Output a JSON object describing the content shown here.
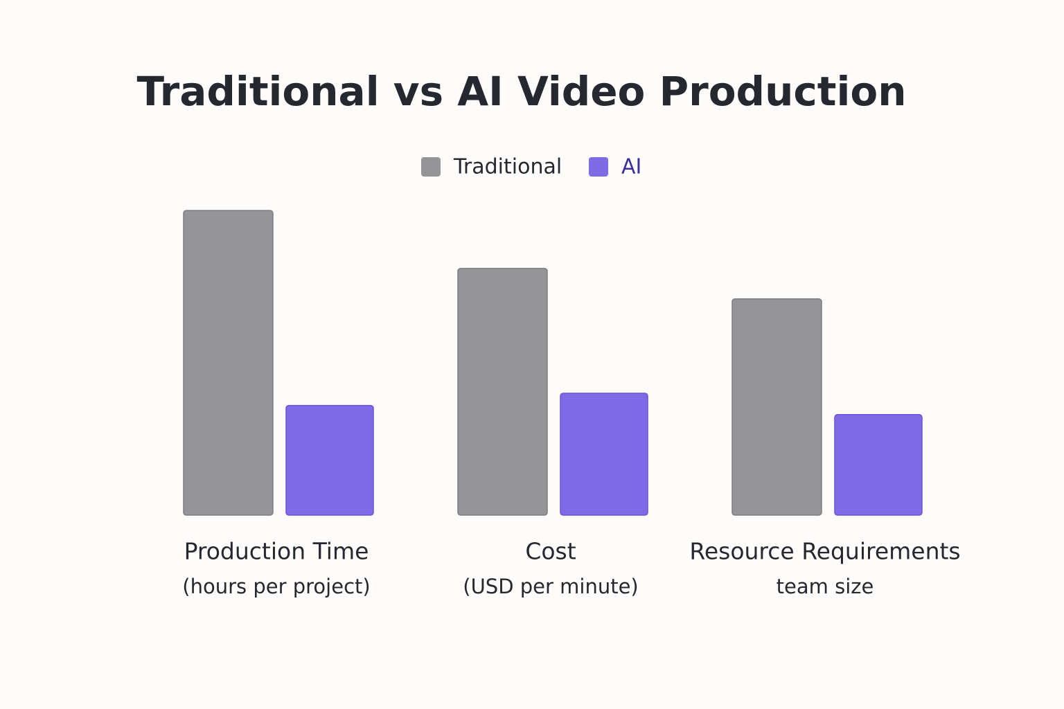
{
  "chart_data": {
    "type": "bar",
    "title": "Traditional vs AI Video Production",
    "categories": [
      "Production Time",
      "Cost",
      "Resource Requirements"
    ],
    "category_subtitles": [
      "(hours per project)",
      "(USD per minute)",
      "team size"
    ],
    "series": [
      {
        "name": "Traditional",
        "color": "#959597",
        "values": [
          100,
          81,
          71
        ]
      },
      {
        "name": "AI",
        "color": "#806be6",
        "values": [
          36,
          40,
          33
        ]
      }
    ],
    "grid": false
  }
}
